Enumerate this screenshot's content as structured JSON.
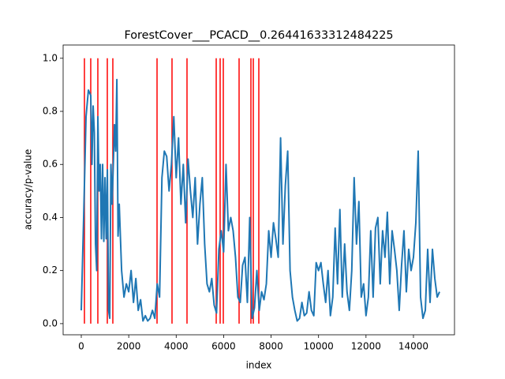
{
  "chart_data": {
    "type": "line",
    "title": "ForestCover___PCACD__0.26441633312484225",
    "xlabel": "index",
    "ylabel": "accuracy/p-value",
    "x": [
      0,
      100,
      200,
      300,
      400,
      450,
      500,
      550,
      600,
      650,
      700,
      750,
      800,
      850,
      900,
      950,
      1000,
      1050,
      1100,
      1150,
      1200,
      1250,
      1300,
      1400,
      1450,
      1500,
      1550,
      1600,
      1700,
      1800,
      1900,
      2000,
      2100,
      2200,
      2300,
      2400,
      2500,
      2600,
      2700,
      2800,
      2900,
      3000,
      3100,
      3200,
      3300,
      3400,
      3500,
      3600,
      3700,
      3800,
      3900,
      4000,
      4100,
      4200,
      4300,
      4400,
      4500,
      4600,
      4700,
      4800,
      4900,
      5000,
      5100,
      5200,
      5300,
      5400,
      5500,
      5600,
      5700,
      5800,
      5900,
      6000,
      6100,
      6200,
      6300,
      6400,
      6500,
      6600,
      6700,
      6800,
      6900,
      7000,
      7100,
      7200,
      7300,
      7400,
      7500,
      7600,
      7700,
      7800,
      7900,
      8000,
      8100,
      8200,
      8300,
      8400,
      8500,
      8600,
      8700,
      8800,
      8900,
      9000,
      9100,
      9200,
      9300,
      9400,
      9500,
      9600,
      9700,
      9800,
      9900,
      10000,
      10100,
      10200,
      10300,
      10400,
      10500,
      10600,
      10700,
      10800,
      10900,
      11000,
      11100,
      11200,
      11300,
      11400,
      11500,
      11600,
      11700,
      11800,
      11900,
      12000,
      12100,
      12200,
      12300,
      12400,
      12500,
      12600,
      12700,
      12800,
      12900,
      13000,
      13100,
      13200,
      13300,
      13400,
      13500,
      13600,
      13700,
      13800,
      13900,
      14000,
      14100,
      14200,
      14300,
      14400,
      14500,
      14600,
      14700,
      14800,
      14900,
      15000,
      15100
    ],
    "values": [
      0.05,
      0.4,
      0.78,
      0.88,
      0.86,
      0.6,
      0.82,
      0.72,
      0.3,
      0.2,
      0.78,
      0.5,
      0.6,
      0.32,
      0.6,
      0.31,
      0.55,
      0.32,
      0.58,
      0.05,
      0.02,
      0.6,
      0.45,
      0.75,
      0.65,
      0.92,
      0.33,
      0.45,
      0.2,
      0.1,
      0.15,
      0.12,
      0.2,
      0.08,
      0.17,
      0.05,
      0.09,
      0.01,
      0.03,
      0.01,
      0.02,
      0.05,
      0.02,
      0.15,
      0.1,
      0.55,
      0.65,
      0.63,
      0.5,
      0.6,
      0.78,
      0.55,
      0.7,
      0.45,
      0.6,
      0.38,
      0.62,
      0.5,
      0.4,
      0.55,
      0.3,
      0.45,
      0.55,
      0.3,
      0.15,
      0.12,
      0.17,
      0.07,
      0.04,
      0.28,
      0.35,
      0.27,
      0.6,
      0.35,
      0.4,
      0.35,
      0.25,
      0.1,
      0.08,
      0.22,
      0.25,
      0.08,
      0.4,
      0.02,
      0.06,
      0.2,
      0.05,
      0.12,
      0.09,
      0.15,
      0.35,
      0.25,
      0.38,
      0.32,
      0.25,
      0.7,
      0.3,
      0.52,
      0.65,
      0.2,
      0.1,
      0.05,
      0.01,
      0.02,
      0.08,
      0.03,
      0.04,
      0.12,
      0.05,
      0.03,
      0.23,
      0.2,
      0.23,
      0.15,
      0.08,
      0.2,
      0.03,
      0.1,
      0.36,
      0.15,
      0.43,
      0.1,
      0.3,
      0.12,
      0.05,
      0.2,
      0.55,
      0.3,
      0.46,
      0.1,
      0.15,
      0.03,
      0.1,
      0.35,
      0.1,
      0.36,
      0.4,
      0.15,
      0.35,
      0.25,
      0.42,
      0.15,
      0.35,
      0.28,
      0.2,
      0.05,
      0.22,
      0.35,
      0.12,
      0.28,
      0.2,
      0.25,
      0.38,
      0.65,
      0.1,
      0.02,
      0.05,
      0.28,
      0.08,
      0.28,
      0.17,
      0.1,
      0.12
    ],
    "color": "#1f77b4",
    "vlines": {
      "x": [
        133,
        399,
        698,
        1097,
        1330,
        3193,
        3824,
        4456,
        5687,
        5853,
        5986,
        6651,
        7150,
        7250,
        7483
      ],
      "ymin": 0,
      "ymax": 1,
      "color": "#ff0000"
    },
    "xlim": [
      -765,
      15730
    ],
    "ylim": [
      -0.042,
      1.05
    ],
    "xticks": [
      0,
      2000,
      4000,
      6000,
      8000,
      10000,
      12000,
      14000
    ],
    "yticks": [
      {
        "value": 0,
        "label": "0.0"
      },
      0.2,
      0.4,
      0.6,
      0.8,
      {
        "value": 1,
        "label": "1.0"
      }
    ]
  }
}
